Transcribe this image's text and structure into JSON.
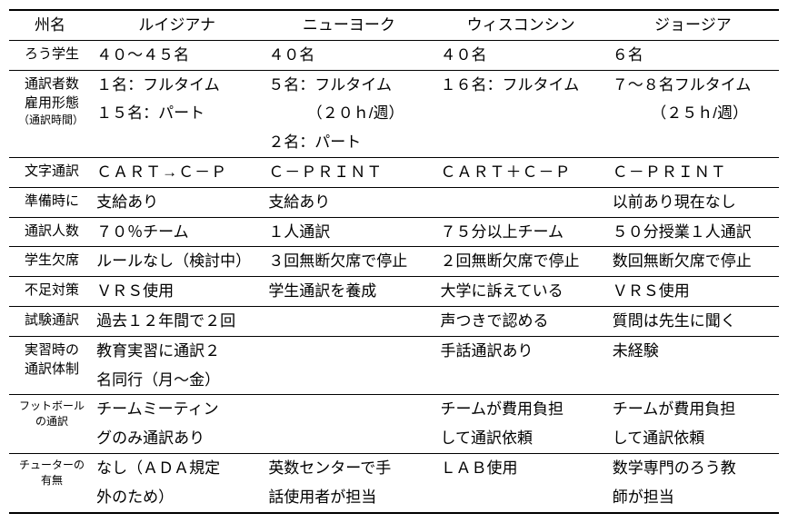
{
  "headers": {
    "label": "州名",
    "c1": "ルイジアナ",
    "c2": "ニューヨーク",
    "c3": "ウィスコンシン",
    "c4": "ジョージア"
  },
  "rows": {
    "students": {
      "label": "ろう学生",
      "c1": "４０～４５名",
      "c2": "４０名",
      "c3": "４０名",
      "c4": "６名"
    },
    "interpreters": {
      "label1": "通訳者数",
      "label2": "雇用形態",
      "label3": "（通訳時間）",
      "c1a": "１名：フルタイム",
      "c1b": "１５名：パート",
      "c2a": "５名：フルタイム",
      "c2b": "　　　（２０ｈ/週）",
      "c2c": "２名：パート",
      "c3a": "１６名：フルタイム",
      "c4a": "７～８名フルタイム",
      "c4b": "　　　（２５ｈ/週）"
    },
    "textInterp": {
      "label": "文字通訳",
      "c1": "ＣＡＲＴ→Ｃ－Ｐ",
      "c2": "Ｃ－ＰＲＩＮＴ",
      "c3": "ＣＡＲＴ＋Ｃ－Ｐ",
      "c4": "Ｃ－ＰＲＩＮＴ"
    },
    "prep": {
      "label": "準備時に",
      "c1": "支給あり",
      "c2": "支給あり",
      "c3": "",
      "c4": "以前あり現在なし"
    },
    "interpCount": {
      "label": "通訳人数",
      "c1": "７０％チーム",
      "c2": "１人通訳",
      "c3": "７５分以上チーム",
      "c4": "５０分授業１人通訳"
    },
    "absence": {
      "label": "学生欠席",
      "c1": "ルールなし（検討中）",
      "c2": "３回無断欠席で停止",
      "c3": "２回無断欠席で停止",
      "c4": "数回無断欠席で停止"
    },
    "shortage": {
      "label": "不足対策",
      "c1": "ＶＲＳ使用",
      "c2": "学生通訳を養成",
      "c3": "大学に訴えている",
      "c4": "ＶＲＳ使用"
    },
    "exam": {
      "label": "試験通訳",
      "c1": "過去１２年間で２回",
      "c2": "",
      "c3": "声つきで認める",
      "c4": "質問は先生に聞く"
    },
    "practice": {
      "label1": "実習時の",
      "label2": "通訳体制",
      "c1a": "教育実習に通訳２",
      "c1b": "名同行（月～金）",
      "c3": "手話通訳あり",
      "c4": "未経験"
    },
    "football": {
      "label1": "フットボール",
      "label2": "の通訳",
      "c1a": "チームミーティン",
      "c1b": "グのみ通訳あり",
      "c3a": "チームが費用負担",
      "c3b": "して通訳依頼",
      "c4a": "チームが費用負担",
      "c4b": "して通訳依頼"
    },
    "tutor": {
      "label1": "チューターの",
      "label2": "有無",
      "c1a": "なし（ＡＤＡ規定",
      "c1b": "外のため）",
      "c2a": "英数センターで手",
      "c2b": "話使用者が担当",
      "c3": "ＬＡＢ使用",
      "c4a": "数学専門のろう教",
      "c4b": "師が担当"
    }
  }
}
